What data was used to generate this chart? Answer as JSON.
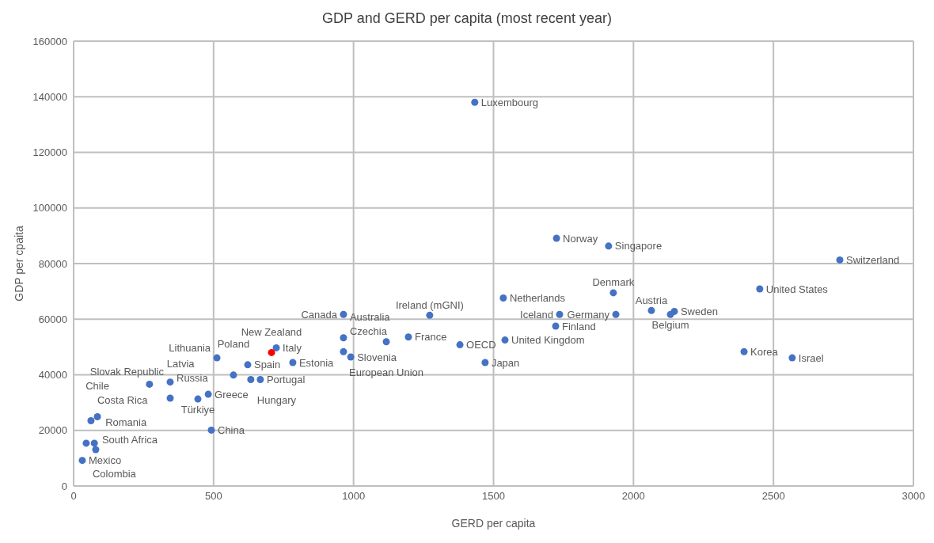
{
  "chart_data": {
    "type": "scatter",
    "title": "GDP and GERD per capita (most recent year)",
    "xlabel": "GERD per capita",
    "ylabel": "GDP per cpaita",
    "x": [
      1433,
      1725,
      1911,
      2737,
      2451,
      1928,
      1535,
      964,
      1272,
      1736,
      1937,
      2064,
      2146,
      2132,
      1722,
      1541,
      1470,
      1380,
      1196,
      1117,
      964,
      964,
      990,
      2395,
      2567,
      724,
      707,
      512,
      622,
      783,
      571,
      633,
      667,
      271,
      345,
      345,
      444,
      481,
      85,
      62,
      492,
      45,
      74,
      79,
      31
    ],
    "values": [
      138000,
      89100,
      86300,
      81300,
      70900,
      69500,
      67600,
      61700,
      61400,
      61700,
      61700,
      63100,
      62800,
      61700,
      57500,
      52500,
      44400,
      50800,
      53600,
      51900,
      53300,
      48300,
      46400,
      48300,
      46100,
      49700,
      48000,
      46100,
      43600,
      44400,
      39900,
      38300,
      38300,
      36600,
      37400,
      31600,
      31300,
      33000,
      24900,
      23500,
      20100,
      15400,
      15400,
      13100,
      9200
    ],
    "colors": [
      "#4472c4",
      "#4472c4",
      "#4472c4",
      "#4472c4",
      "#4472c4",
      "#4472c4",
      "#4472c4",
      "#4472c4",
      "#4472c4",
      "#4472c4",
      "#4472c4",
      "#4472c4",
      "#4472c4",
      "#4472c4",
      "#4472c4",
      "#4472c4",
      "#4472c4",
      "#4472c4",
      "#4472c4",
      "#4472c4",
      "#4472c4",
      "#4472c4",
      "#4472c4",
      "#4472c4",
      "#4472c4",
      "#4472c4",
      "#ff0000",
      "#4472c4",
      "#4472c4",
      "#4472c4",
      "#4472c4",
      "#4472c4",
      "#4472c4",
      "#4472c4",
      "#4472c4",
      "#4472c4",
      "#4472c4",
      "#4472c4",
      "#4472c4",
      "#4472c4",
      "#4472c4",
      "#4472c4",
      "#4472c4",
      "#4472c4",
      "#4472c4"
    ],
    "annotations": [
      {
        "text": "Luxembourg",
        "x": 1433,
        "y": 138000
      },
      {
        "text": "Norway",
        "x": 1725,
        "y": 89100
      },
      {
        "text": "Singapore",
        "x": 1911,
        "y": 86300
      },
      {
        "text": "Switzerland",
        "x": 2737,
        "y": 81300
      },
      {
        "text": "United States",
        "x": 2451,
        "y": 70900
      },
      {
        "text": "Denmark",
        "x": 1928,
        "y": 69500
      },
      {
        "text": "Netherlands",
        "x": 1535,
        "y": 67600
      },
      {
        "text": "Canada",
        "x": 964,
        "y": 61700
      },
      {
        "text": "Ireland (mGNI)",
        "x": 1272,
        "y": 61400
      },
      {
        "text": "Iceland",
        "x": 1736,
        "y": 61700
      },
      {
        "text": "Germany",
        "x": 1937,
        "y": 61700
      },
      {
        "text": "Austria",
        "x": 2064,
        "y": 63100
      },
      {
        "text": "Sweden",
        "x": 2146,
        "y": 62800
      },
      {
        "text": "Belgium",
        "x": 2132,
        "y": 61700
      },
      {
        "text": "Finland",
        "x": 1722,
        "y": 57500
      },
      {
        "text": "United Kingdom",
        "x": 1541,
        "y": 52500
      },
      {
        "text": "Japan",
        "x": 1470,
        "y": 44400
      },
      {
        "text": "OECD",
        "x": 1380,
        "y": 50800
      },
      {
        "text": "France",
        "x": 1196,
        "y": 53600
      },
      {
        "text": "European Union",
        "x": 1117,
        "y": 51900
      },
      {
        "text": "Australia",
        "x": 964,
        "y": 53300
      },
      {
        "text": "Czechia",
        "x": 964,
        "y": 48300
      },
      {
        "text": "Slovenia",
        "x": 990,
        "y": 46400
      },
      {
        "text": "Korea",
        "x": 2395,
        "y": 48300
      },
      {
        "text": "Israel",
        "x": 2567,
        "y": 46100
      },
      {
        "text": "Italy",
        "x": 724,
        "y": 49700
      },
      {
        "text": "New Zealand",
        "x": 707,
        "y": 48000
      },
      {
        "text": "Lithuania",
        "x": 512,
        "y": 46100
      },
      {
        "text": "Spain",
        "x": 622,
        "y": 43600
      },
      {
        "text": "Estonia",
        "x": 783,
        "y": 44400
      },
      {
        "text": "Poland",
        "x": 571,
        "y": 39900
      },
      {
        "text": "Hungary",
        "x": 633,
        "y": 38300
      },
      {
        "text": "Portugal",
        "x": 667,
        "y": 38300
      },
      {
        "text": "Latvia",
        "x": 271,
        "y": 36600
      },
      {
        "text": "Slovak Republic",
        "x": 345,
        "y": 37400
      },
      {
        "text": "Russia",
        "x": 345,
        "y": 31600
      },
      {
        "text": "Türkiye",
        "x": 444,
        "y": 31300
      },
      {
        "text": "Greece",
        "x": 481,
        "y": 33000
      },
      {
        "text": "Chile",
        "x": 85,
        "y": 24900
      },
      {
        "text": "Costa Rica",
        "x": 62,
        "y": 23500
      },
      {
        "text": "China",
        "x": 492,
        "y": 20100
      },
      {
        "text": "Colombia",
        "x": 45,
        "y": 15400
      },
      {
        "text": "Romania",
        "x": 74,
        "y": 15400
      },
      {
        "text": "South Africa",
        "x": 79,
        "y": 13100
      },
      {
        "text": "Mexico",
        "x": 31,
        "y": 9200
      }
    ],
    "xlim": [
      0,
      3000
    ],
    "xticks": [
      0,
      500,
      1000,
      1500,
      2000,
      2500,
      3000
    ],
    "ylim": [
      0,
      160000
    ],
    "yticks": [
      0,
      20000,
      40000,
      60000,
      80000,
      100000,
      120000,
      140000,
      160000
    ],
    "grid": true,
    "legend": false,
    "marker": "circle"
  }
}
